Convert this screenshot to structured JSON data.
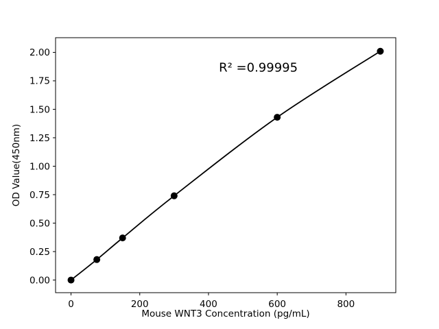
{
  "figure": {
    "background": "#ffffff",
    "text_color": "#000000"
  },
  "chart_data": {
    "type": "line",
    "title": "",
    "xlabel": "Mouse WNT3 Concentration (pg/mL)",
    "ylabel": "OD Value(450nm)",
    "series": [
      {
        "name": "standard-curve",
        "x": [
          0,
          75,
          150,
          300,
          600,
          900
        ],
        "y": [
          0.0,
          0.18,
          0.37,
          0.74,
          1.43,
          2.01
        ],
        "line_color": "#000000",
        "marker_color": "#000000",
        "marker": "circle"
      }
    ],
    "xticks": [
      0,
      200,
      400,
      600,
      800
    ],
    "xtick_labels": [
      "0",
      "200",
      "400",
      "600",
      "800"
    ],
    "yticks": [
      0,
      0.25,
      0.5,
      0.75,
      1.0,
      1.25,
      1.5,
      1.75,
      2.0
    ],
    "ytick_labels": [
      "0.00",
      "0.25",
      "0.50",
      "0.75",
      "1.00",
      "1.25",
      "1.50",
      "1.75",
      "2.00"
    ],
    "xlim": [
      -45,
      945
    ],
    "ylim": [
      -0.111,
      2.129
    ],
    "grid": false,
    "legend": null,
    "annotation": {
      "text": "R² =0.99995",
      "x": 545,
      "y": 1.862
    }
  }
}
